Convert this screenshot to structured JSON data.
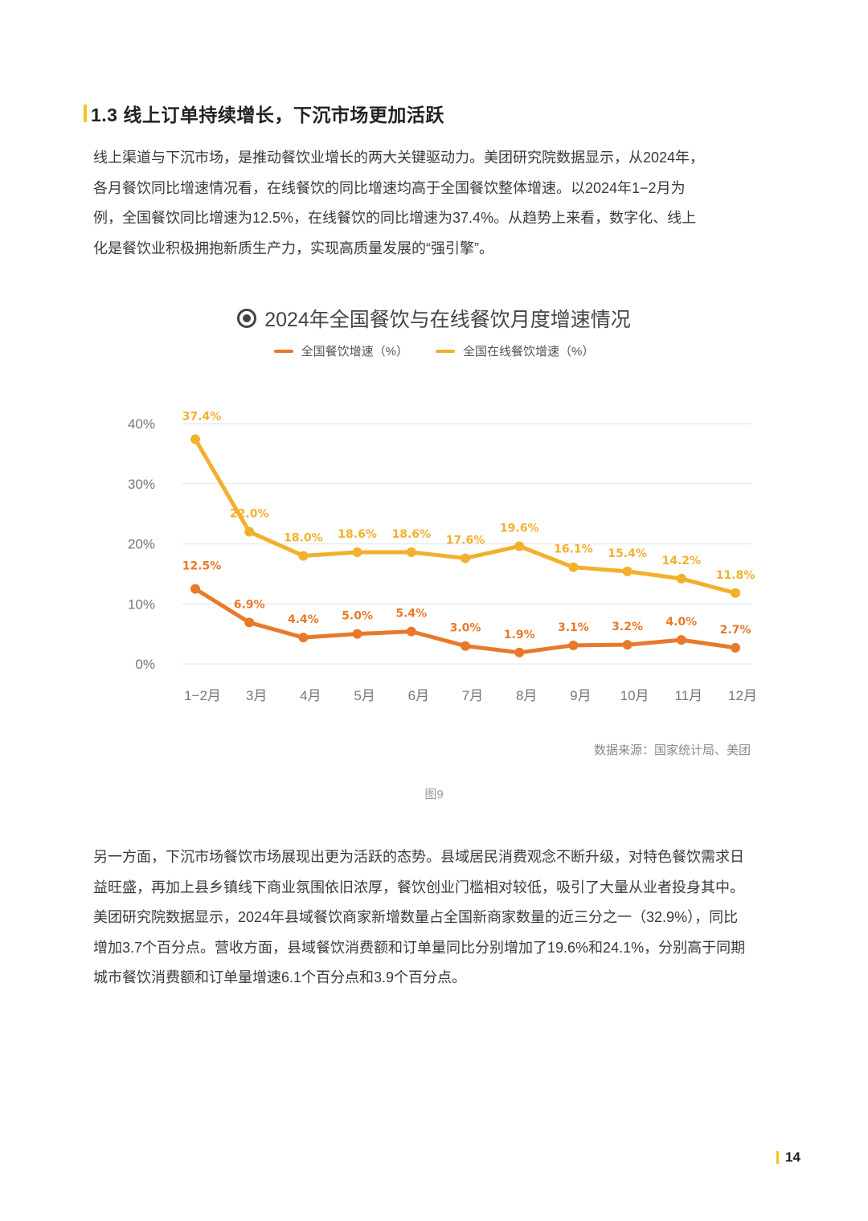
{
  "section": {
    "title": "1.3 线上订单持续增长，下沉市场更加活跃"
  },
  "intro_paragraph": {
    "lines": [
      "线上渠道与下沉市场，是推动餐饮业增长的两大关键驱动力。美团研究院数据显示，从2024年，",
      "各月餐饮同比增速情况看，在线餐饮的同比增速均高于全国餐饮整体增速。以2024年1−2月为",
      "例，全国餐饮同比增速为12.5%，在线餐饮的同比增速为37.4%。从趋势上来看，数字化、线上",
      "化是餐饮业积极拥抱新质生产力，实现高质量发展的“强引擎”。"
    ]
  },
  "figure": {
    "title": "2024年全国餐饮与在线餐饮月度增速情况",
    "source": "数据来源：国家统计局、美团",
    "label": "图9"
  },
  "chart_data": {
    "type": "line",
    "title": "2024年全国餐饮与在线餐饮月度增速情况",
    "xlabel": "",
    "ylabel": "",
    "categories": [
      "1−2月",
      "3月",
      "4月",
      "5月",
      "6月",
      "7月",
      "8月",
      "9月",
      "10月",
      "11月",
      "12月"
    ],
    "yticks": [
      "0%",
      "10%",
      "20%",
      "30%",
      "40%"
    ],
    "ylim": [
      0,
      40
    ],
    "grid": true,
    "legend_position": "top",
    "series": [
      {
        "name": "全国餐饮增速（%）",
        "color": "#e8792b",
        "values": [
          12.5,
          6.9,
          4.4,
          5.0,
          5.4,
          3.0,
          1.9,
          3.1,
          3.2,
          4.0,
          2.7
        ],
        "labels": [
          "12.5%",
          "6.9%",
          "4.4%",
          "5.0%",
          "5.4%",
          "3.0%",
          "1.9%",
          "3.1%",
          "3.2%",
          "4.0%",
          "2.7%"
        ]
      },
      {
        "name": "全国在线餐饮增速（%）",
        "color": "#f2b02d",
        "values": [
          37.4,
          22.0,
          18.0,
          18.6,
          18.6,
          17.6,
          19.6,
          16.1,
          15.4,
          14.2,
          11.8
        ],
        "labels": [
          "37.4%",
          "22.0%",
          "18.0%",
          "18.6%",
          "18.6%",
          "17.6%",
          "19.6%",
          "16.1%",
          "15.4%",
          "14.2%",
          "11.8%"
        ]
      }
    ]
  },
  "body_paragraph": {
    "lines": [
      "另一方面，下沉市场餐饮市场展现出更为活跃的态势。县域居民消费观念不断升级，对特色餐饮需求日",
      "益旺盛，再加上县乡镇线下商业氛围依旧浓厚，餐饮创业门槛相对较低，吸引了大量从业者投身其中。",
      "美团研究院数据显示，2024年县域餐饮商家新增数量占全国新商家数量的近三分之一（32.9%），同比",
      "增加3.7个百分点。营收方面，县域餐饮消费额和订单量同比分别增加了19.6%和24.1%，分别高于同期",
      "城市餐饮消费额和订单量增速6.1个百分点和3.9个百分点。"
    ]
  },
  "footer": {
    "page_number": "14"
  },
  "colors": {
    "accent_yellow": "#f5c518",
    "series_orange": "#e8792b",
    "series_yellow": "#f2b02d"
  }
}
